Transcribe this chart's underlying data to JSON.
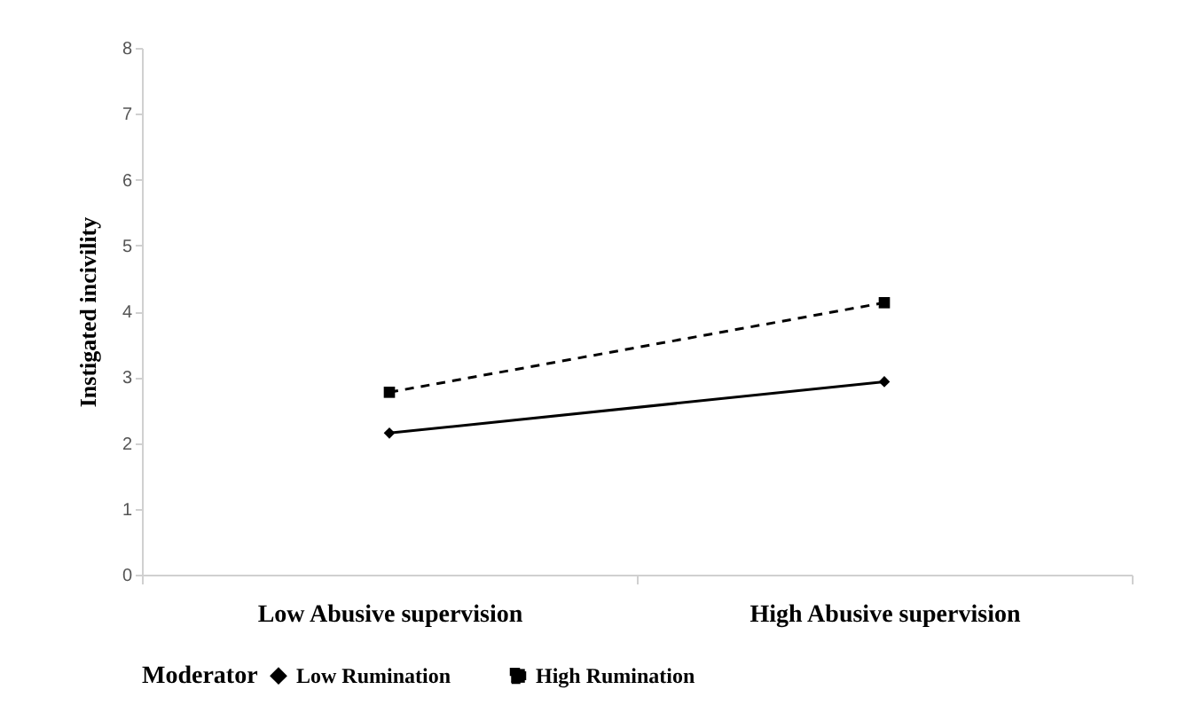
{
  "chart_data": {
    "type": "line",
    "ylabel": "Instigated incivility",
    "legend_title": "Moderator",
    "categories": [
      "Low Abusive supervision",
      "High Abusive supervision"
    ],
    "series": [
      {
        "name": "Low Rumination",
        "color": "#000000",
        "values": [
          2.15,
          2.93
        ],
        "line_style": "solid",
        "marker": "diamond"
      },
      {
        "name": "High Rumination",
        "color": "#000000",
        "values": [
          2.77,
          4.13
        ],
        "line_style": "dashed",
        "marker": "square"
      }
    ],
    "ylim": [
      0,
      8
    ],
    "yticks": [
      0,
      1,
      2,
      3,
      4,
      5,
      6,
      7,
      8
    ],
    "grid": false,
    "legend": "bottom"
  }
}
